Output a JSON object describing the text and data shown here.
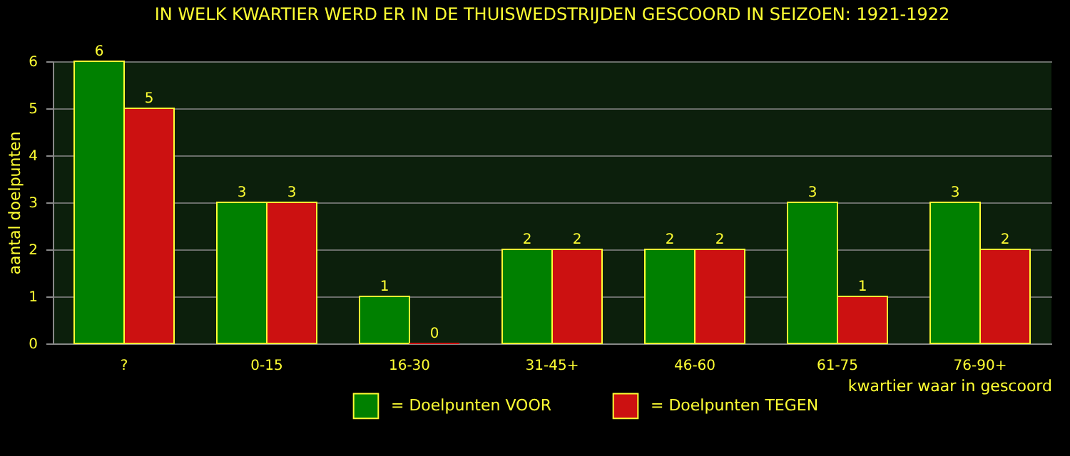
{
  "chart_data": {
    "type": "bar",
    "title": "IN WELK KWARTIER WERD ER IN DE THUISWEDSTRIJDEN GESCOORD IN SEIZOEN: 1921-1922",
    "xlabel": "kwartier waar in gescoord",
    "ylabel": "aantal doelpunten",
    "categories": [
      "?",
      "0-15",
      "16-30",
      "31-45+",
      "46-60",
      "61-75",
      "76-90+"
    ],
    "series": [
      {
        "name": "= Doelpunten VOOR",
        "color": "#008000",
        "values": [
          6,
          3,
          1,
          2,
          2,
          3,
          3
        ]
      },
      {
        "name": "= Doelpunten TEGEN",
        "color": "#cc1111",
        "values": [
          5,
          3,
          0,
          2,
          2,
          1,
          2
        ]
      }
    ],
    "ylim": [
      0,
      6
    ],
    "yticks": [
      0,
      1,
      2,
      3,
      4,
      5,
      6
    ],
    "grid": "y",
    "legend": "bottom",
    "data_labels": true
  }
}
